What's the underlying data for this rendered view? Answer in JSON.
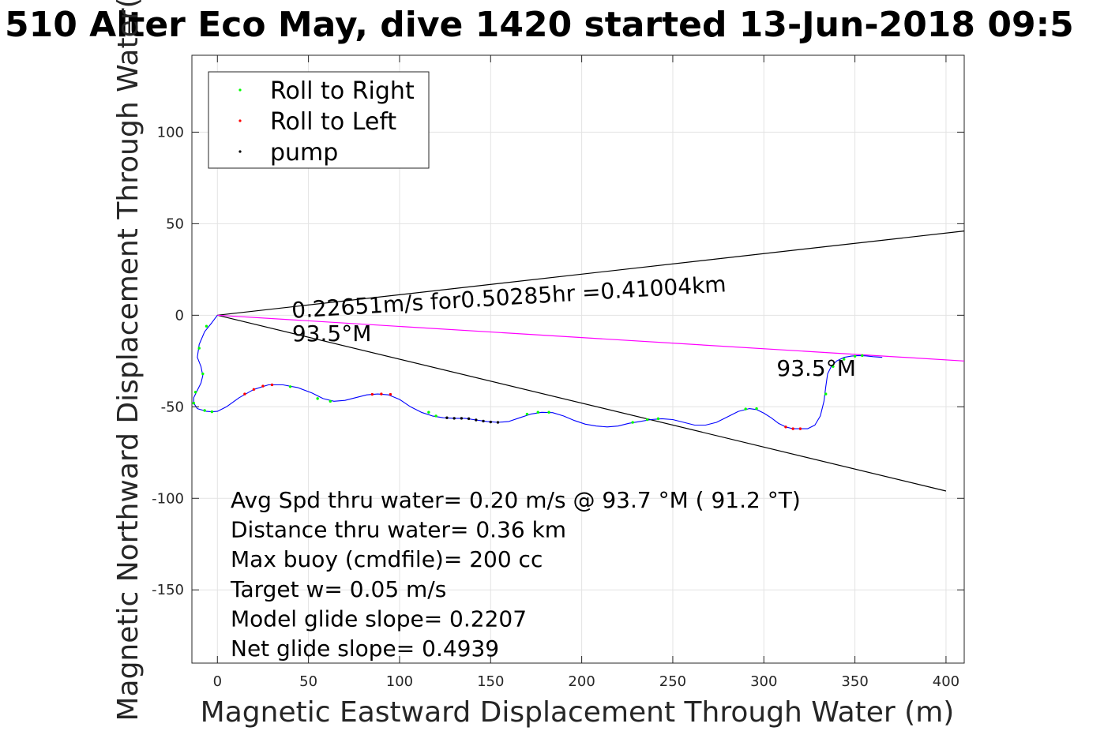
{
  "chart_data": {
    "type": "line",
    "title": "510 Alter Eco May, dive 1420 started 13-Jun-2018 09:5",
    "xlabel": "Magnetic Eastward Displacement Through Water (m)",
    "ylabel": "Magnetic Northward Displacement Through Water(",
    "xlim": [
      -14,
      410
    ],
    "ylim": [
      -190,
      142
    ],
    "xticks": [
      0,
      50,
      100,
      150,
      200,
      250,
      300,
      350,
      400
    ],
    "yticks": [
      100,
      50,
      0,
      -50,
      -100,
      -150
    ],
    "ytick_labels": [
      "100",
      "50",
      "0",
      "-50",
      "-100",
      "-150"
    ],
    "grid": true,
    "legend": {
      "position": "top-left",
      "entries": [
        {
          "label": "Roll to Right",
          "color": "#00ff00"
        },
        {
          "label": "Roll to Left",
          "color": "#ff0000"
        },
        {
          "label": "pump",
          "color": "#000000"
        }
      ]
    },
    "track": {
      "name": "track",
      "color": "#0000ff",
      "x": [
        0,
        -3,
        -7,
        -10,
        -11,
        -9,
        -8,
        -9,
        -11,
        -13,
        -13,
        -11,
        -6,
        -3,
        0,
        5,
        12,
        20,
        28,
        36,
        44,
        52,
        58,
        64,
        70,
        76,
        82,
        88,
        94,
        100,
        106,
        112,
        118,
        124,
        130,
        136,
        142,
        148,
        154,
        160,
        166,
        172,
        178,
        184,
        190,
        196,
        202,
        208,
        214,
        220,
        226,
        232,
        238,
        244,
        250,
        256,
        262,
        268,
        274,
        280,
        286,
        292,
        296,
        300,
        304,
        308,
        312,
        316,
        320,
        324,
        328,
        331,
        333,
        334,
        335,
        337,
        340,
        344,
        348,
        352,
        356,
        360,
        365
      ],
      "y": [
        0,
        -4,
        -9,
        -16,
        -23,
        -28,
        -33,
        -37,
        -41,
        -45,
        -48,
        -51,
        -52.5,
        -52.7,
        -52.5,
        -50,
        -45,
        -40.5,
        -38,
        -38,
        -39.5,
        -42.5,
        -45.5,
        -47,
        -46.5,
        -45,
        -43.5,
        -43,
        -43.5,
        -46,
        -50,
        -53,
        -55,
        -56,
        -56.3,
        -56.3,
        -57.2,
        -58,
        -58.5,
        -58,
        -56,
        -54,
        -53,
        -53.2,
        -55,
        -57.5,
        -59.5,
        -60.5,
        -61,
        -60.5,
        -59,
        -58,
        -57,
        -56.5,
        -57,
        -58.5,
        -60,
        -60,
        -58.5,
        -55.5,
        -52.5,
        -51,
        -51.5,
        -53.5,
        -56,
        -59,
        -61,
        -62,
        -62,
        -62,
        -60,
        -55,
        -47,
        -39,
        -32,
        -28,
        -25,
        -23,
        -22.3,
        -22,
        -22.2,
        -22.6,
        -23
      ]
    },
    "roll_right_markers": {
      "color": "#00ff00",
      "x": [
        -6,
        -10,
        -8,
        -12,
        -13,
        -7,
        -3,
        40,
        55,
        62,
        116,
        120,
        170,
        176,
        182,
        228,
        236,
        242,
        290,
        296,
        334,
        338,
        344,
        350,
        354
      ],
      "y": [
        -6,
        -18,
        -32,
        -42,
        -48,
        -52,
        -52.7,
        -39,
        -45.5,
        -47,
        -53,
        -55,
        -54,
        -53,
        -53,
        -58.5,
        -57,
        -56.5,
        -51.2,
        -51,
        -43,
        -28,
        -24,
        -22.4,
        -22
      ]
    },
    "roll_left_markers": {
      "color": "#ff0000",
      "x": [
        15,
        20,
        25,
        30,
        85,
        90,
        95,
        312,
        316,
        320
      ],
      "y": [
        -43,
        -40.5,
        -38.7,
        -38,
        -43.2,
        -43,
        -43.2,
        -61,
        -62,
        -62
      ]
    },
    "pump_markers": {
      "color": "#000000",
      "x": [
        126,
        130,
        134,
        138,
        142,
        146,
        150,
        154
      ],
      "y": [
        -56,
        -56.3,
        -56.3,
        -56.5,
        -57.2,
        -57.8,
        -58.3,
        -58.5
      ]
    },
    "lines": [
      {
        "name": "upper-bound-line",
        "color": "#000000",
        "x": [
          0,
          410
        ],
        "y": [
          0,
          46
        ]
      },
      {
        "name": "lower-bound-line",
        "color": "#000000",
        "x": [
          0,
          400
        ],
        "y": [
          0,
          -96
        ]
      },
      {
        "name": "mean-heading-line",
        "color": "#ff00ff",
        "x": [
          0,
          410
        ],
        "y": [
          0,
          -25
        ]
      }
    ],
    "annotations": [
      {
        "text": "0.22651m/s for0.50285hr =0.41004km",
        "x": 41,
        "y": -1.5,
        "rotate": -3.5
      },
      {
        "text": "93.5°M",
        "x": 41,
        "y": -14,
        "rotate": 0
      },
      {
        "text": "93.5°M",
        "x": 307,
        "y": -33,
        "rotate": 0
      }
    ],
    "stats_text": [
      "Avg Spd thru water=  0.20 m/s @  93.7 °M ( 91.2 °T)",
      "Distance thru water=  0.36 km",
      "Max buoy (cmdfile)= 200 cc",
      "Target w= 0.05 m/s",
      "Model glide slope= 0.2207",
      "Net glide slope= 0.4939"
    ]
  }
}
